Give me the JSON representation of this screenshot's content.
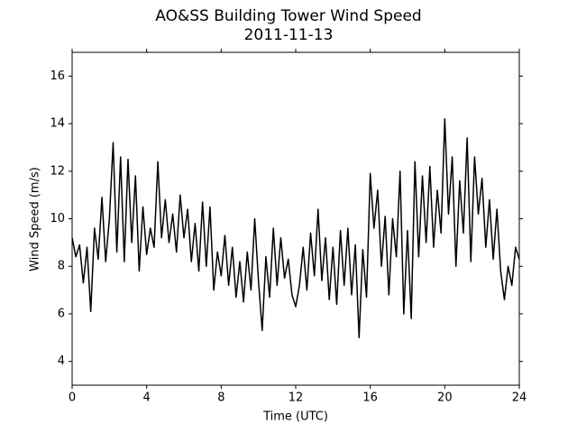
{
  "chart_data": {
    "type": "line",
    "title": "AO&SS Building Tower Wind Speed",
    "subtitle": "2011-11-13",
    "x_label": "Time (UTC)",
    "y_label": "Wind Speed (m/s)",
    "xlim": [
      0,
      24
    ],
    "xticks": [
      0,
      4,
      8,
      12,
      16,
      20,
      24
    ],
    "ylim": [
      3,
      17
    ],
    "yticks": [
      4,
      6,
      8,
      10,
      12,
      14,
      16
    ],
    "grid": false,
    "x": [
      0,
      0.2,
      0.4,
      0.6,
      0.8,
      1,
      1.2,
      1.4,
      1.6,
      1.8,
      2,
      2.2,
      2.4,
      2.6,
      2.8,
      3,
      3.2,
      3.4,
      3.6,
      3.8,
      4,
      4.2,
      4.4,
      4.6,
      4.8,
      5,
      5.2,
      5.4,
      5.6,
      5.8,
      6,
      6.2,
      6.4,
      6.6,
      6.8,
      7,
      7.2,
      7.4,
      7.6,
      7.8,
      8,
      8.2,
      8.4,
      8.6,
      8.8,
      9,
      9.2,
      9.4,
      9.6,
      9.8,
      10,
      10.2,
      10.4,
      10.6,
      10.8,
      11,
      11.2,
      11.4,
      11.6,
      11.8,
      12,
      12.2,
      12.4,
      12.6,
      12.8,
      13,
      13.2,
      13.4,
      13.6,
      13.8,
      14,
      14.2,
      14.4,
      14.6,
      14.8,
      15,
      15.2,
      15.4,
      15.6,
      15.8,
      16,
      16.2,
      16.4,
      16.6,
      16.8,
      17,
      17.2,
      17.4,
      17.6,
      17.8,
      18,
      18.2,
      18.4,
      18.6,
      18.8,
      19,
      19.2,
      19.4,
      19.6,
      19.8,
      20,
      20.2,
      20.4,
      20.6,
      20.8,
      21,
      21.2,
      21.4,
      21.6,
      21.8,
      22,
      22.2,
      22.4,
      22.6,
      22.8,
      23,
      23.2,
      23.4,
      23.6,
      23.8,
      24
    ],
    "series": [
      {
        "color": "#000000",
        "values": [
          9.2,
          8.4,
          8.9,
          7.3,
          8.8,
          6.1,
          9.6,
          8.3,
          10.9,
          8.2,
          10.0,
          13.2,
          8.6,
          12.6,
          8.2,
          12.5,
          9.0,
          11.8,
          7.8,
          10.5,
          8.5,
          9.6,
          8.8,
          12.4,
          9.2,
          10.8,
          9.0,
          10.2,
          8.6,
          11.0,
          9.2,
          10.4,
          8.2,
          9.8,
          7.8,
          10.7,
          8.0,
          10.5,
          7.0,
          8.6,
          7.6,
          9.3,
          7.2,
          8.8,
          6.7,
          8.2,
          6.5,
          8.6,
          7.0,
          10.0,
          7.4,
          5.3,
          8.4,
          6.7,
          9.6,
          7.2,
          9.2,
          7.5,
          8.3,
          6.8,
          6.3,
          7.2,
          8.8,
          7.0,
          9.4,
          7.6,
          10.4,
          7.4,
          9.2,
          6.6,
          8.8,
          6.4,
          9.5,
          7.2,
          9.6,
          6.8,
          8.9,
          5.0,
          8.7,
          6.7,
          11.9,
          9.6,
          11.2,
          8.0,
          10.1,
          6.8,
          10.0,
          8.4,
          12.0,
          6.0,
          9.5,
          5.8,
          12.4,
          8.4,
          11.8,
          9.0,
          12.2,
          8.8,
          11.2,
          9.4,
          14.2,
          10.2,
          12.6,
          8.0,
          11.6,
          9.4,
          13.4,
          8.2,
          12.6,
          10.2,
          11.7,
          8.8,
          10.8,
          8.3,
          10.4,
          7.8,
          6.6,
          8.0,
          7.2,
          8.8,
          8.3
        ]
      }
    ]
  }
}
